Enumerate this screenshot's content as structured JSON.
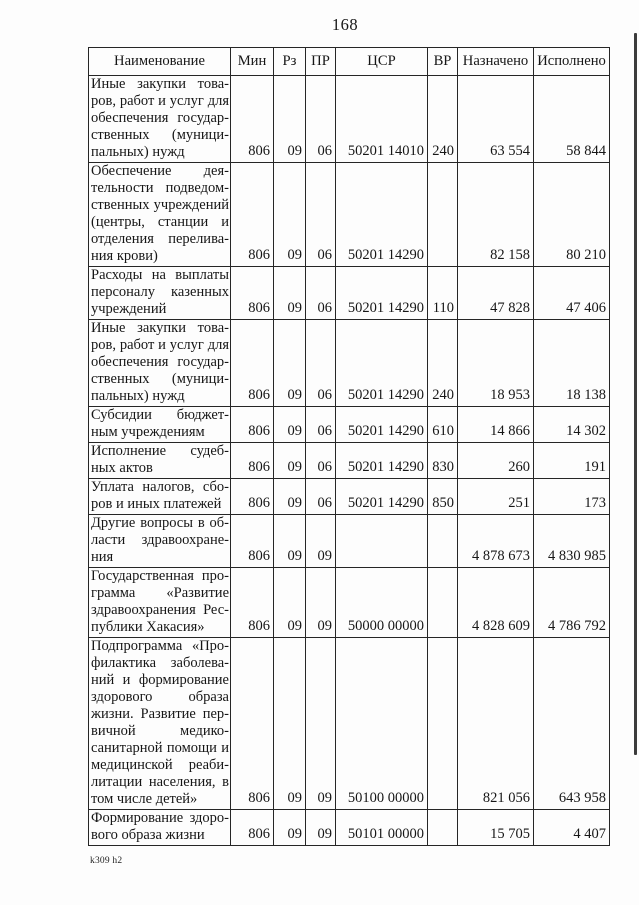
{
  "page": {
    "number": "168",
    "footer_mark": "k309 h2"
  },
  "colors": {
    "text": "#161616",
    "border": "#262626",
    "background": "#fdfdfd"
  },
  "table": {
    "headers": [
      "Наименование",
      "Мин",
      "Рз",
      "ПР",
      "ЦСР",
      "ВР",
      "Назначено",
      "Исполнено"
    ],
    "rows": [
      {
        "name_lines": [
          "Иные закупки това-",
          "ров, работ и услуг для",
          "обеспечения государ-",
          "ственных (муници-",
          "пальных) нужд"
        ],
        "min": "806",
        "rz": "09",
        "pr": "06",
        "csr": "50201 14010",
        "vr": "240",
        "assigned": "63 554",
        "executed": "58 844"
      },
      {
        "name_lines": [
          "Обеспечение дея-",
          "тельности подведом-",
          "ственных учреждений",
          "(центры, станции и",
          "отделения перелива-",
          "ния крови)"
        ],
        "min": "806",
        "rz": "09",
        "pr": "06",
        "csr": "50201 14290",
        "vr": "",
        "assigned": "82 158",
        "executed": "80 210"
      },
      {
        "name_lines": [
          "Расходы на выплаты",
          "персоналу казенных",
          "учреждений"
        ],
        "min": "806",
        "rz": "09",
        "pr": "06",
        "csr": "50201 14290",
        "vr": "110",
        "assigned": "47 828",
        "executed": "47 406"
      },
      {
        "name_lines": [
          "Иные закупки това-",
          "ров, работ и услуг для",
          "обеспечения государ-",
          "ственных (муници-",
          "пальных) нужд"
        ],
        "min": "806",
        "rz": "09",
        "pr": "06",
        "csr": "50201 14290",
        "vr": "240",
        "assigned": "18 953",
        "executed": "18 138"
      },
      {
        "name_lines": [
          "Субсидии бюджет-",
          "ным учреждениям"
        ],
        "min": "806",
        "rz": "09",
        "pr": "06",
        "csr": "50201 14290",
        "vr": "610",
        "assigned": "14 866",
        "executed": "14 302"
      },
      {
        "name_lines": [
          "Исполнение судеб-",
          "ных актов"
        ],
        "min": "806",
        "rz": "09",
        "pr": "06",
        "csr": "50201 14290",
        "vr": "830",
        "assigned": "260",
        "executed": "191"
      },
      {
        "name_lines": [
          "Уплата налогов, сбо-",
          "ров и иных платежей"
        ],
        "min": "806",
        "rz": "09",
        "pr": "06",
        "csr": "50201 14290",
        "vr": "850",
        "assigned": "251",
        "executed": "173"
      },
      {
        "name_lines": [
          "Другие вопросы в об-",
          "ласти здравоохране-",
          "ния"
        ],
        "min": "806",
        "rz": "09",
        "pr": "09",
        "csr": "",
        "vr": "",
        "assigned": "4 878 673",
        "executed": "4 830 985"
      },
      {
        "name_lines": [
          "Государственная про-",
          "грамма «Развитие",
          "здравоохранения Рес-",
          "публики Хакасия»"
        ],
        "min": "806",
        "rz": "09",
        "pr": "09",
        "csr": "50000 00000",
        "vr": "",
        "assigned": "4 828 609",
        "executed": "4 786 792"
      },
      {
        "name_lines": [
          "Подпрограмма «Про-",
          "филактика заболева-",
          "ний и формирование",
          "здорового образа",
          "жизни. Развитие пер-",
          "вичной медико-",
          "санитарной помощи и",
          "медицинской реаби-",
          "литации населения, в",
          "том числе детей»"
        ],
        "min": "806",
        "rz": "09",
        "pr": "09",
        "csr": "50100 00000",
        "vr": "",
        "assigned": "821 056",
        "executed": "643 958"
      },
      {
        "name_lines": [
          "Формирование здоро-",
          "вого образа жизни"
        ],
        "min": "806",
        "rz": "09",
        "pr": "09",
        "csr": "50101 00000",
        "vr": "",
        "assigned": "15 705",
        "executed": "4 407"
      }
    ]
  }
}
